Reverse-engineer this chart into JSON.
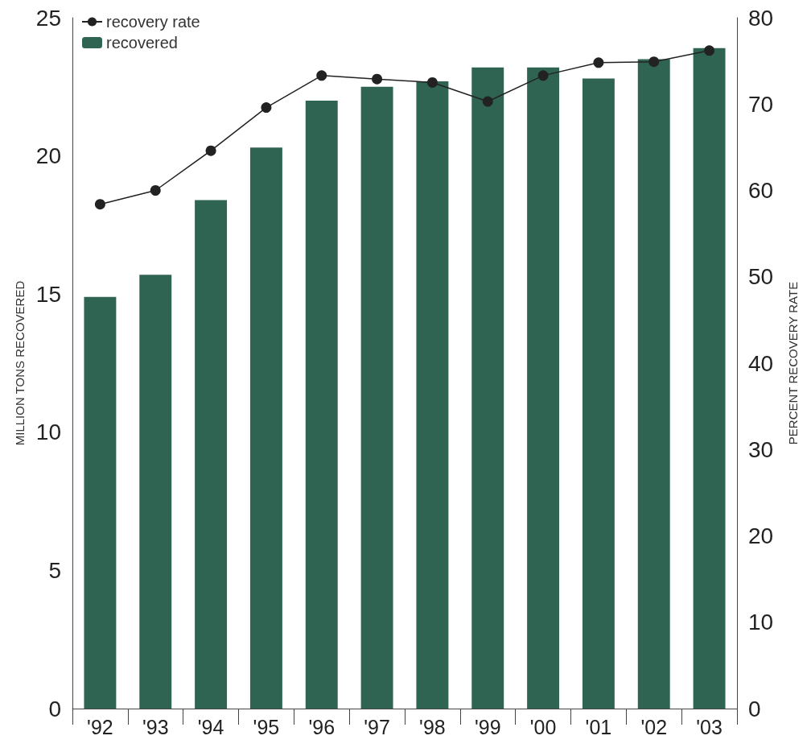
{
  "chart_data": {
    "type": "bar",
    "categories": [
      "'92",
      "'93",
      "'94",
      "'95",
      "'96",
      "'97",
      "'98",
      "'99",
      "'00",
      "'01",
      "'02",
      "'03"
    ],
    "series": [
      {
        "name": "recovered",
        "color": "#2f6452",
        "values": [
          14.9,
          15.7,
          18.4,
          20.3,
          22.0,
          22.5,
          22.7,
          23.2,
          23.2,
          22.8,
          23.5,
          23.9
        ]
      },
      {
        "name": "recovery rate",
        "type": "line",
        "axis": "y2",
        "color": "#222222",
        "values": [
          58.4,
          60.0,
          64.6,
          69.6,
          73.3,
          72.9,
          72.5,
          70.3,
          73.3,
          74.8,
          74.9,
          76.2
        ]
      }
    ],
    "ylabel": "MILLION TONS RECOVERED",
    "y2label": "PERCENT RECOVERY RATE",
    "ylim": [
      0,
      25
    ],
    "yticks": [
      0,
      5,
      10,
      15,
      20,
      25
    ],
    "y2lim": [
      0,
      80
    ],
    "y2ticks": [
      0,
      10,
      20,
      30,
      40,
      50,
      60,
      70,
      80
    ],
    "legend": "top left",
    "grid": false,
    "marker": "circle"
  }
}
